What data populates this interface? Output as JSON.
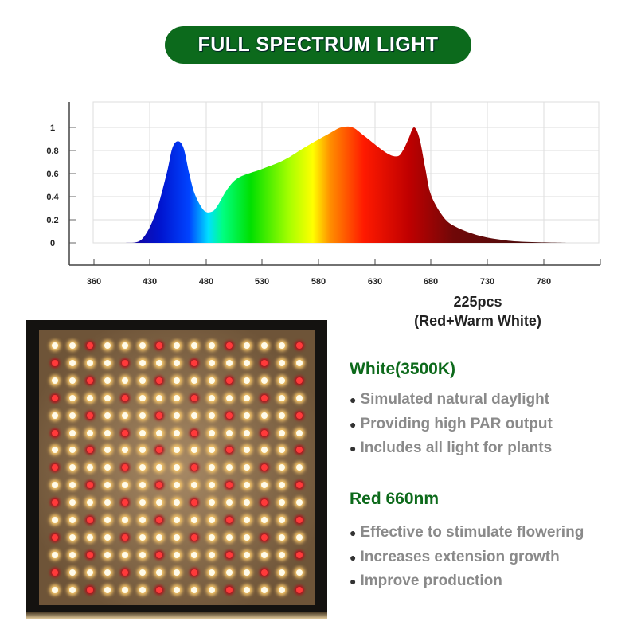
{
  "header": {
    "title": "FULL SPECTRUM LIGHT",
    "color": "#0c6a1c"
  },
  "chart_data": {
    "type": "area",
    "title": "",
    "xlabel": "",
    "ylabel": "",
    "x_ticks": [
      360,
      430,
      480,
      530,
      580,
      630,
      680,
      730,
      780
    ],
    "y_ticks": [
      0,
      0.2,
      0.4,
      0.6,
      0.8,
      1
    ],
    "ylim": [
      0,
      1.1
    ],
    "grid": true,
    "fill": "visible-spectrum gradient",
    "x": [
      400,
      420,
      435,
      445,
      450,
      455,
      460,
      465,
      470,
      478,
      485,
      490,
      500,
      510,
      530,
      550,
      570,
      590,
      600,
      610,
      620,
      640,
      650,
      655,
      660,
      665,
      670,
      675,
      680,
      690,
      700,
      720,
      740,
      760,
      800
    ],
    "y": [
      0,
      0.03,
      0.25,
      0.6,
      0.82,
      0.88,
      0.82,
      0.6,
      0.42,
      0.28,
      0.27,
      0.32,
      0.48,
      0.57,
      0.64,
      0.72,
      0.84,
      0.95,
      1.0,
      1.0,
      0.93,
      0.78,
      0.75,
      0.8,
      0.9,
      1.0,
      0.9,
      0.65,
      0.42,
      0.24,
      0.15,
      0.07,
      0.03,
      0.01,
      0
    ]
  },
  "panel": {
    "count_label": "225pcs",
    "type_label": "(Red+Warm White)"
  },
  "white": {
    "title": "White(3500K)",
    "bullets": [
      "Simulated natural daylight",
      "Providing high PAR output",
      "Includes all light for plants"
    ]
  },
  "red": {
    "title": "Red 660nm",
    "bullets": [
      "Effective to stimulate flowering",
      "Increases extension growth",
      "Improve production"
    ]
  }
}
